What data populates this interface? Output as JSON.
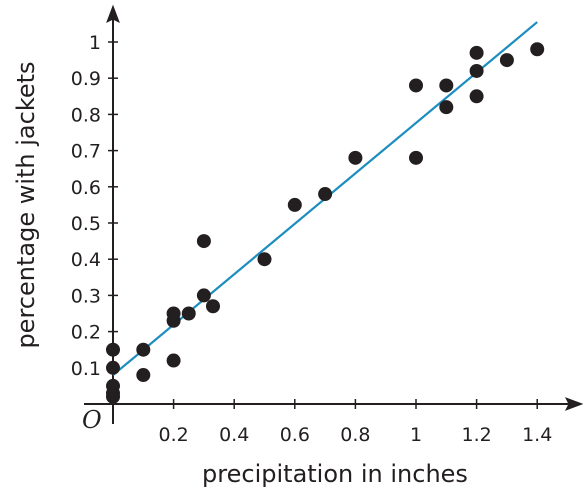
{
  "chart_data": {
    "type": "scatter",
    "xlabel": "precipitation in inches",
    "ylabel": "percentage with jackets",
    "origin_label": "O",
    "xlim": [
      0,
      1.5
    ],
    "ylim": [
      0,
      1.1
    ],
    "xticks": [
      {
        "value": 0.2,
        "label": "0.2"
      },
      {
        "value": 0.4,
        "label": "0.4"
      },
      {
        "value": 0.6,
        "label": "0.6"
      },
      {
        "value": 0.8,
        "label": "0.8"
      },
      {
        "value": 1.0,
        "label": "1"
      },
      {
        "value": 1.2,
        "label": "1.2"
      },
      {
        "value": 1.4,
        "label": "1.4"
      }
    ],
    "yticks": [
      {
        "value": 0.1,
        "label": "0.1"
      },
      {
        "value": 0.2,
        "label": "0.2"
      },
      {
        "value": 0.3,
        "label": "0.3"
      },
      {
        "value": 0.4,
        "label": "0.4"
      },
      {
        "value": 0.5,
        "label": "0.5"
      },
      {
        "value": 0.6,
        "label": "0.6"
      },
      {
        "value": 0.7,
        "label": "0.7"
      },
      {
        "value": 0.8,
        "label": "0.8"
      },
      {
        "value": 0.9,
        "label": "0.9"
      },
      {
        "value": 1.0,
        "label": "1"
      }
    ],
    "points": [
      {
        "x": 0,
        "y": 0.02
      },
      {
        "x": 0,
        "y": 0.03
      },
      {
        "x": 0,
        "y": 0.05
      },
      {
        "x": 0,
        "y": 0.1
      },
      {
        "x": 0,
        "y": 0.15
      },
      {
        "x": 0.1,
        "y": 0.08
      },
      {
        "x": 0.1,
        "y": 0.15
      },
      {
        "x": 0.2,
        "y": 0.12
      },
      {
        "x": 0.2,
        "y": 0.23
      },
      {
        "x": 0.2,
        "y": 0.25
      },
      {
        "x": 0.25,
        "y": 0.25
      },
      {
        "x": 0.3,
        "y": 0.3
      },
      {
        "x": 0.3,
        "y": 0.45
      },
      {
        "x": 0.33,
        "y": 0.27
      },
      {
        "x": 0.5,
        "y": 0.4
      },
      {
        "x": 0.6,
        "y": 0.55
      },
      {
        "x": 0.7,
        "y": 0.58
      },
      {
        "x": 0.8,
        "y": 0.68
      },
      {
        "x": 1.0,
        "y": 0.68
      },
      {
        "x": 1.0,
        "y": 0.88
      },
      {
        "x": 1.1,
        "y": 0.82
      },
      {
        "x": 1.1,
        "y": 0.88
      },
      {
        "x": 1.2,
        "y": 0.85
      },
      {
        "x": 1.2,
        "y": 0.92
      },
      {
        "x": 1.2,
        "y": 0.97
      },
      {
        "x": 1.3,
        "y": 0.95
      },
      {
        "x": 1.4,
        "y": 0.98
      }
    ],
    "trend_line": {
      "x0": 0,
      "y0": 0.08,
      "x1": 1.4,
      "y1": 1.055
    },
    "colors": {
      "points": "#231f20",
      "trend_line": "#1b8dbf",
      "axes": "#231f20"
    },
    "grid": false,
    "legend": "none"
  }
}
